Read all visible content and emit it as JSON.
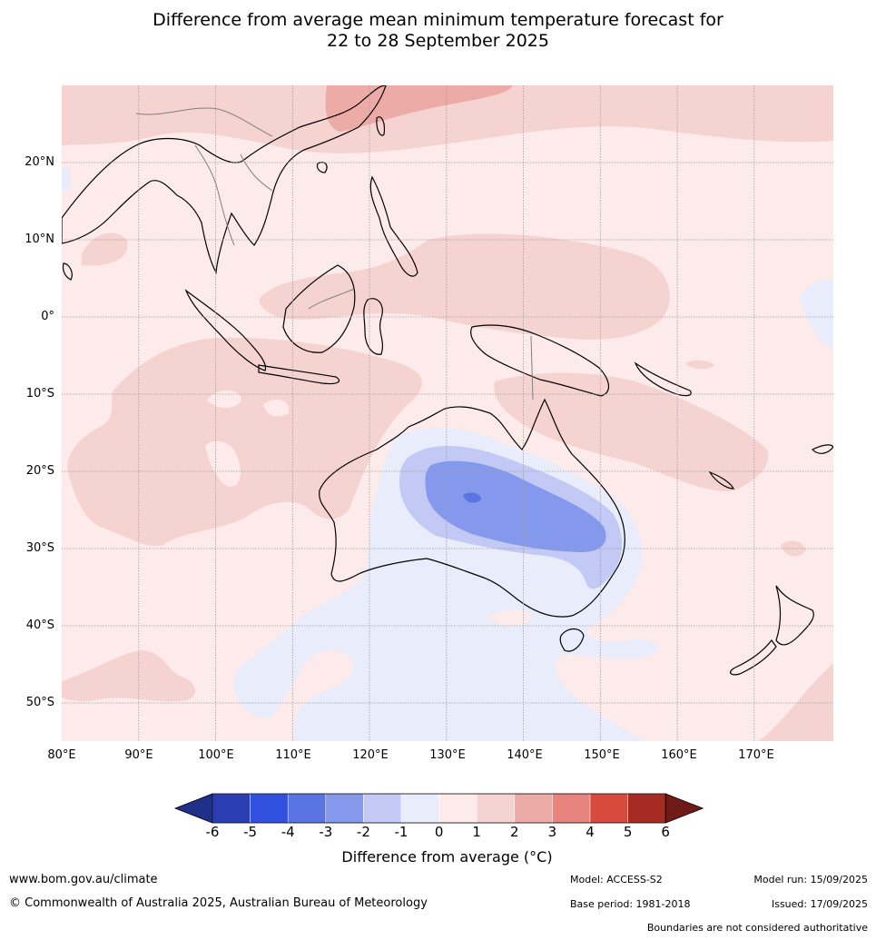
{
  "title": {
    "line1": "Difference from average mean minimum temperature forecast for",
    "line2": "22 to 28 September 2025"
  },
  "map": {
    "lon_range": [
      80,
      180
    ],
    "lat_range": [
      -55,
      30
    ],
    "lat_labels": [
      "20°N",
      "10°N",
      "0°",
      "10°S",
      "20°S",
      "30°S",
      "40°S",
      "50°S"
    ],
    "lon_labels": [
      "80°E",
      "90°E",
      "100°E",
      "110°E",
      "120°E",
      "130°E",
      "140°E",
      "150°E",
      "160°E",
      "170°E"
    ],
    "grid": true,
    "coastline_color": "#000000",
    "border_color": "#808080"
  },
  "colorbar": {
    "ticks": [
      "-6",
      "-5",
      "-4",
      "-3",
      "-2",
      "-1",
      "0",
      "1",
      "2",
      "3",
      "4",
      "5",
      "6"
    ],
    "colors": [
      "#1f2f8a",
      "#2a3db3",
      "#3150e0",
      "#5b74e3",
      "#8599ec",
      "#c1c9f4",
      "#e9ecfb",
      "#fcebea",
      "#f5d3d1",
      "#edaba8",
      "#e8847e",
      "#d94a3e",
      "#a72b22",
      "#6e1a17"
    ],
    "label": "Difference from average (°C)"
  },
  "footer": {
    "website": "www.bom.gov.au/climate",
    "copyright": "© Commonwealth of Australia 2025, Australian Bureau of Meteorology",
    "model": "Model: ACCESS-S2",
    "base_period": "Base period: 1981-2018",
    "model_run": "Model run: 15/09/2025",
    "issued": "Issued: 17/09/2025",
    "disclaimer": "Boundaries are not considered authoritative"
  }
}
